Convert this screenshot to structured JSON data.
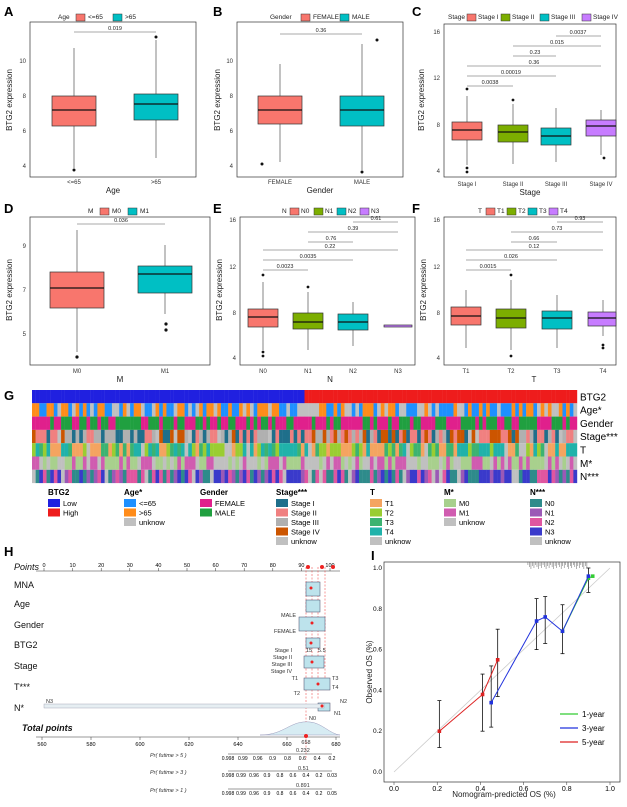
{
  "panels": {
    "A": {
      "letter": "A",
      "ylabel": "BTG2  expression",
      "xlabel": "Age",
      "legend_title": "Age",
      "legend_items": [
        "<=65",
        ">65"
      ],
      "colors": [
        "#f8766d",
        "#00bfc4"
      ],
      "ticks_y": [
        "4",
        "6",
        "8",
        "10"
      ],
      "ticks_x": [
        "<=65",
        ">65"
      ],
      "pvals": [
        "0.019"
      ]
    },
    "B": {
      "letter": "B",
      "ylabel": "BTG2  expression",
      "xlabel": "Gender",
      "legend_title": "Gender",
      "legend_items": [
        "FEMALE",
        "MALE"
      ],
      "colors": [
        "#f8766d",
        "#00bfc4"
      ],
      "ticks_y": [
        "4",
        "6",
        "8",
        "10"
      ],
      "ticks_x": [
        "FEMALE",
        "MALE"
      ],
      "pvals": [
        "0.36"
      ]
    },
    "C": {
      "letter": "C",
      "ylabel": "BTG2  expression",
      "xlabel": "Stage",
      "legend_title": "Stage",
      "legend_items": [
        "Stage I",
        "Stage II",
        "Stage III",
        "Stage IV"
      ],
      "colors": [
        "#f8766d",
        "#7cae00",
        "#00bfc4",
        "#c77cff"
      ],
      "ticks_y": [
        "4",
        "8",
        "12",
        "16"
      ],
      "ticks_x": [
        "Stage I",
        "Stage II",
        "Stage III",
        "Stage IV"
      ],
      "pvals": [
        "0.0037",
        "0.015",
        "0.23",
        "0.36",
        "0.00019",
        "0.0038"
      ]
    },
    "D": {
      "letter": "D",
      "ylabel": "BTG2  expression",
      "xlabel": "M",
      "legend_title": "M",
      "legend_items": [
        "M0",
        "M1"
      ],
      "colors": [
        "#f8766d",
        "#00bfc4"
      ],
      "ticks_y": [
        "5",
        "7",
        "9"
      ],
      "ticks_x": [
        "M0",
        "M1"
      ],
      "pvals": [
        "0.036"
      ]
    },
    "E": {
      "letter": "E",
      "ylabel": "BTG2  expression",
      "xlabel": "N",
      "legend_title": "N",
      "legend_items": [
        "N0",
        "N1",
        "N2",
        "N3"
      ],
      "colors": [
        "#f8766d",
        "#7cae00",
        "#00bfc4",
        "#c77cff"
      ],
      "ticks_y": [
        "4",
        "8",
        "12",
        "16"
      ],
      "ticks_x": [
        "N0",
        "N1",
        "N2",
        "N3"
      ],
      "pvals": [
        "0.61",
        "0.39",
        "0.76",
        "0.22",
        "0.0035",
        "0.0023"
      ]
    },
    "F": {
      "letter": "F",
      "ylabel": "BTG2  expression",
      "xlabel": "T",
      "legend_title": "T",
      "legend_items": [
        "T1",
        "T2",
        "T3",
        "T4"
      ],
      "colors": [
        "#f8766d",
        "#7cae00",
        "#00bfc4",
        "#c77cff"
      ],
      "ticks_y": [
        "4",
        "8",
        "12",
        "16"
      ],
      "ticks_x": [
        "T1",
        "T2",
        "T3",
        "T4"
      ],
      "pvals": [
        "0.93",
        "0.73",
        "0.66",
        "0.12",
        "0.026",
        "0.0015"
      ]
    }
  },
  "heatmap": {
    "letter": "G",
    "rows": [
      "BTG2",
      "Age*",
      "Gender",
      "Stage***",
      "T",
      "M*",
      "N***"
    ],
    "legends": [
      {
        "title": "BTG2",
        "items": [
          {
            "label": "Low",
            "color": "#2020e0"
          },
          {
            "label": "High",
            "color": "#ee1c1c"
          }
        ]
      },
      {
        "title": "Age*",
        "items": [
          {
            "label": "<=65",
            "color": "#1e90ff"
          },
          {
            "label": ">65",
            "color": "#ff8c1a"
          },
          {
            "label": "unknow",
            "color": "#c0c0c0"
          }
        ]
      },
      {
        "title": "Gender",
        "items": [
          {
            "label": "FEMALE",
            "color": "#e0208c"
          },
          {
            "label": "MALE",
            "color": "#20a040"
          }
        ]
      },
      {
        "title": "Stage***",
        "items": [
          {
            "label": "Stage I",
            "color": "#1f6f8b"
          },
          {
            "label": "Stage II",
            "color": "#f08080"
          },
          {
            "label": "Stage III",
            "color": "#b0b0b0"
          },
          {
            "label": "Stage IV",
            "color": "#cc5500"
          },
          {
            "label": "unknow",
            "color": "#c0c0c0"
          }
        ]
      },
      {
        "title": "T",
        "items": [
          {
            "label": "T1",
            "color": "#f4a460"
          },
          {
            "label": "T2",
            "color": "#9acd32"
          },
          {
            "label": "T3",
            "color": "#3cb371"
          },
          {
            "label": "T4",
            "color": "#20b2aa"
          },
          {
            "label": "unknow",
            "color": "#c0c0c0"
          }
        ]
      },
      {
        "title": "M*",
        "items": [
          {
            "label": "M0",
            "color": "#a8d08d"
          },
          {
            "label": "M1",
            "color": "#d05cb0"
          },
          {
            "label": "unknow",
            "color": "#c0c0c0"
          }
        ]
      },
      {
        "title": "N***",
        "items": [
          {
            "label": "N0",
            "color": "#2e8b8b"
          },
          {
            "label": "N1",
            "color": "#9b59b6"
          },
          {
            "label": "N2",
            "color": "#e056a0"
          },
          {
            "label": "N3",
            "color": "#3a3acb"
          },
          {
            "label": "unknow",
            "color": "#c0c0c0"
          }
        ]
      }
    ]
  },
  "nomogram": {
    "letter": "H",
    "rows": [
      "Points",
      "MNA",
      "Age",
      "Gender",
      "BTG2",
      "Stage",
      "T***",
      "N*",
      "Total points",
      "Pr( futime > 5 )",
      "Pr( futime > 3 )",
      "Pr( futime > 1 )"
    ],
    "points_ticks": [
      "0",
      "10",
      "20",
      "30",
      "40",
      "50",
      "60",
      "70",
      "80",
      "90",
      "100"
    ],
    "total_ticks": [
      "560",
      "580",
      "600",
      "620",
      "640",
      "660",
      "680"
    ],
    "gender_labels": [
      "MALE",
      "FEMALE"
    ],
    "stage_labels": [
      "Stage I",
      "Stage II",
      "Stage III",
      "Stage IV"
    ],
    "t_labels": [
      "T1",
      "T2",
      "T3",
      "T4"
    ],
    "n_labels": [
      "N0",
      "N1",
      "N2",
      "N3"
    ],
    "btg2_vals": [
      "15",
      "5.5"
    ],
    "total_value": "658",
    "pr5_value": "0.232",
    "pr3_value": "0.51",
    "pr1_value": "0.891",
    "pr5_ticks": [
      "0.998",
      "0.99",
      "0.96",
      "0.9",
      "0.8",
      "0.6",
      "0.4",
      "0.2"
    ],
    "pr3_ticks": [
      "0.998",
      "0.99",
      "0.96",
      "0.9",
      "0.8",
      "0.6",
      "0.4",
      "0.2",
      "0.03"
    ],
    "pr1_ticks": [
      "0.998",
      "0.99",
      "0.96",
      "0.9",
      "0.8",
      "0.6",
      "0.4",
      "0.2",
      "0.05"
    ]
  },
  "chart_data": {
    "type": "line",
    "title": "",
    "letter": "I",
    "xlabel": "Nomogram-predicted OS (%)",
    "ylabel": "Observed OS (%)",
    "xlim": [
      0,
      1
    ],
    "ylim": [
      0,
      1
    ],
    "xticks": [
      "0.0",
      "0.2",
      "0.4",
      "0.6",
      "0.8",
      "1.0"
    ],
    "yticks": [
      "0.0",
      "0.2",
      "0.4",
      "0.6",
      "0.8",
      "1.0"
    ],
    "legend": [
      "1-year",
      "3-year",
      "5-year"
    ],
    "series": [
      {
        "name": "1-year",
        "color": "#33cc33",
        "x": [
          0.78,
          0.9,
          0.92
        ],
        "y": [
          0.69,
          0.95,
          0.96
        ]
      },
      {
        "name": "3-year",
        "color": "#2233dd",
        "x": [
          0.45,
          0.66,
          0.7,
          0.78,
          0.9
        ],
        "y": [
          0.34,
          0.74,
          0.76,
          0.69,
          0.96
        ]
      },
      {
        "name": "5-year",
        "color": "#dd2222",
        "x": [
          0.21,
          0.41,
          0.48
        ],
        "y": [
          0.2,
          0.38,
          0.55
        ]
      }
    ]
  }
}
